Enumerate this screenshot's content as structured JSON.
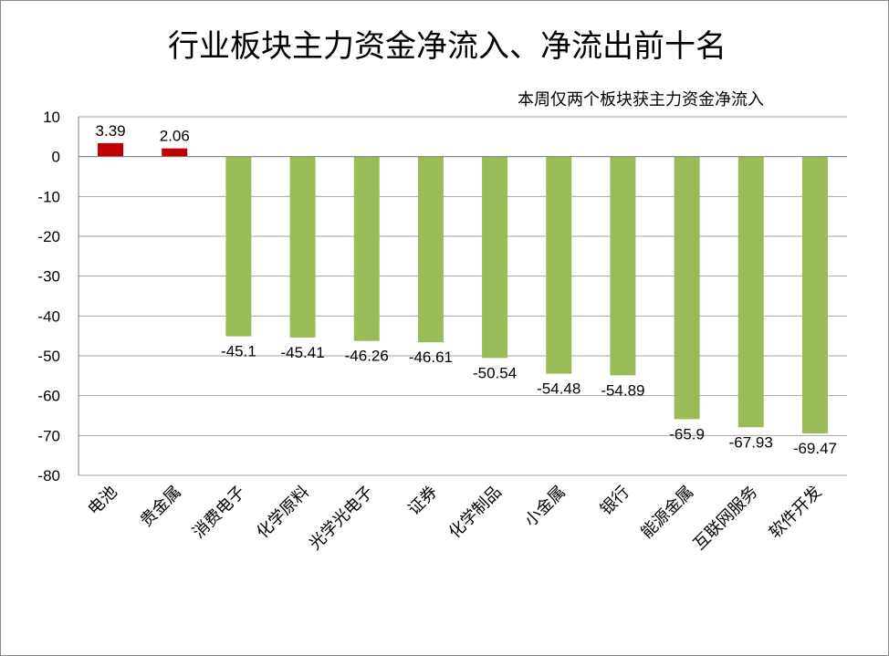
{
  "chart_data": {
    "type": "bar",
    "title": "行业板块主力资金净流入、净流出前十名",
    "subtitle": "本周仅两个板块获主力资金净流入",
    "categories": [
      "电池",
      "贵金属",
      "消费电子",
      "化学原料",
      "光学光电子",
      "证券",
      "化学制品",
      "小金属",
      "银行",
      "能源金属",
      "互联网服务",
      "软件开发"
    ],
    "values": [
      3.39,
      2.06,
      -45.1,
      -45.41,
      -46.26,
      -46.61,
      -50.54,
      -54.48,
      -54.89,
      -65.9,
      -67.93,
      -69.47
    ],
    "data_labels": [
      "3.39",
      "2.06",
      "-45.1",
      "-45.41",
      "-46.26",
      "-46.61",
      "-50.54",
      "-54.48",
      "-54.89",
      "-65.9",
      "-67.93",
      "-69.47"
    ],
    "ylim": [
      -80,
      10
    ],
    "yticks": [
      10,
      0,
      -10,
      -20,
      -30,
      -40,
      -50,
      -60,
      -70,
      -80
    ],
    "ytick_labels": [
      "10",
      "0",
      "-10",
      "-20",
      "-30",
      "-40",
      "-50",
      "-60",
      "-70",
      "-80"
    ],
    "grid": true,
    "xlabel": "",
    "ylabel": "",
    "colors": {
      "positive": "#c00000",
      "negative": "#9bbb59",
      "grid": "#a6a6a6",
      "axis": "#808080"
    }
  }
}
